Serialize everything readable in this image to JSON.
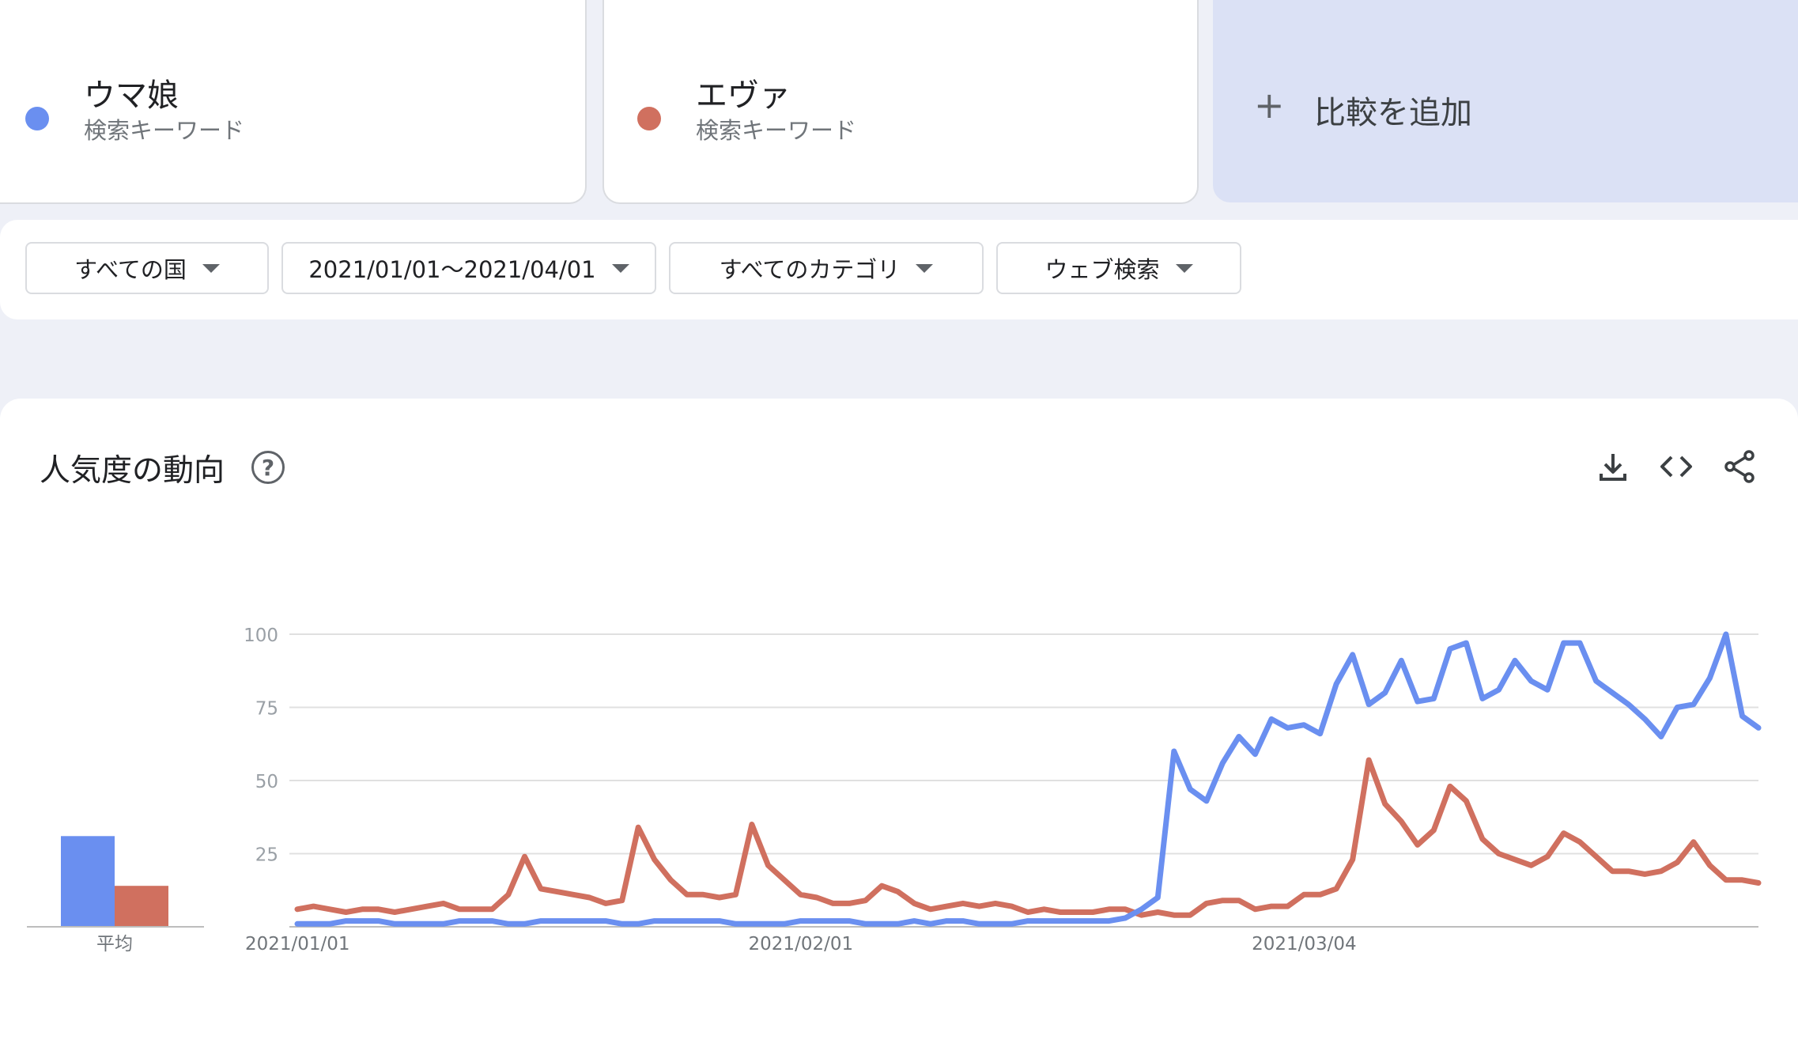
{
  "terms": [
    {
      "name": "ウマ娘",
      "subtitle": "検索キーワード",
      "color": "#6a8ff0"
    },
    {
      "name": "エヴァ",
      "subtitle": "検索キーワード",
      "color": "#d0705f"
    }
  ],
  "add_compare": {
    "plus": "+",
    "label": "比較を追加"
  },
  "filters": [
    {
      "label": "すべての国"
    },
    {
      "label": "2021/01/01〜2021/04/01"
    },
    {
      "label": "すべてのカテゴリ"
    },
    {
      "label": "ウェブ検索"
    }
  ],
  "panel": {
    "title": "人気度の動向",
    "help": "?"
  },
  "tools": [
    "download-icon",
    "embed-code-icon",
    "share-icon"
  ],
  "chart_data": {
    "type": "line",
    "y_ticks": [
      "100",
      "75",
      "50",
      "25"
    ],
    "ylim": [
      0,
      100
    ],
    "grid": true,
    "x_labels": [
      {
        "label": "2021/01/01",
        "index": 0
      },
      {
        "label": "2021/02/01",
        "index": 31
      },
      {
        "label": "2021/03/04",
        "index": 62
      }
    ],
    "average": {
      "label": "平均",
      "values": [
        31,
        14
      ]
    },
    "series": [
      {
        "name": "ウマ娘",
        "color": "#6a8ff0",
        "values": [
          1,
          1,
          1,
          2,
          2,
          2,
          1,
          1,
          1,
          1,
          2,
          2,
          2,
          1,
          1,
          2,
          2,
          2,
          2,
          2,
          1,
          1,
          2,
          2,
          2,
          2,
          2,
          1,
          1,
          1,
          1,
          2,
          2,
          2,
          2,
          1,
          1,
          1,
          2,
          1,
          2,
          2,
          1,
          1,
          1,
          2,
          2,
          2,
          2,
          2,
          2,
          3,
          6,
          10,
          60,
          47,
          43,
          56,
          65,
          59,
          71,
          68,
          69,
          66,
          83,
          93,
          76,
          80,
          91,
          77,
          78,
          95,
          97,
          78,
          81,
          91,
          84,
          81,
          97,
          97,
          84,
          80,
          76,
          71,
          65,
          75,
          76,
          85,
          100,
          72,
          68
        ]
      },
      {
        "name": "エヴァ",
        "color": "#d0705f",
        "values": [
          6,
          7,
          6,
          5,
          6,
          6,
          5,
          6,
          7,
          8,
          6,
          6,
          6,
          11,
          24,
          13,
          12,
          11,
          10,
          8,
          9,
          34,
          23,
          16,
          11,
          11,
          10,
          11,
          35,
          21,
          16,
          11,
          10,
          8,
          8,
          9,
          14,
          12,
          8,
          6,
          7,
          8,
          7,
          8,
          7,
          5,
          6,
          5,
          5,
          5,
          6,
          6,
          4,
          5,
          4,
          4,
          8,
          9,
          9,
          6,
          7,
          7,
          11,
          11,
          13,
          23,
          57,
          42,
          36,
          28,
          33,
          48,
          43,
          30,
          25,
          23,
          21,
          24,
          32,
          29,
          24,
          19,
          19,
          18,
          19,
          22,
          29,
          21,
          16,
          16,
          15
        ]
      }
    ]
  }
}
